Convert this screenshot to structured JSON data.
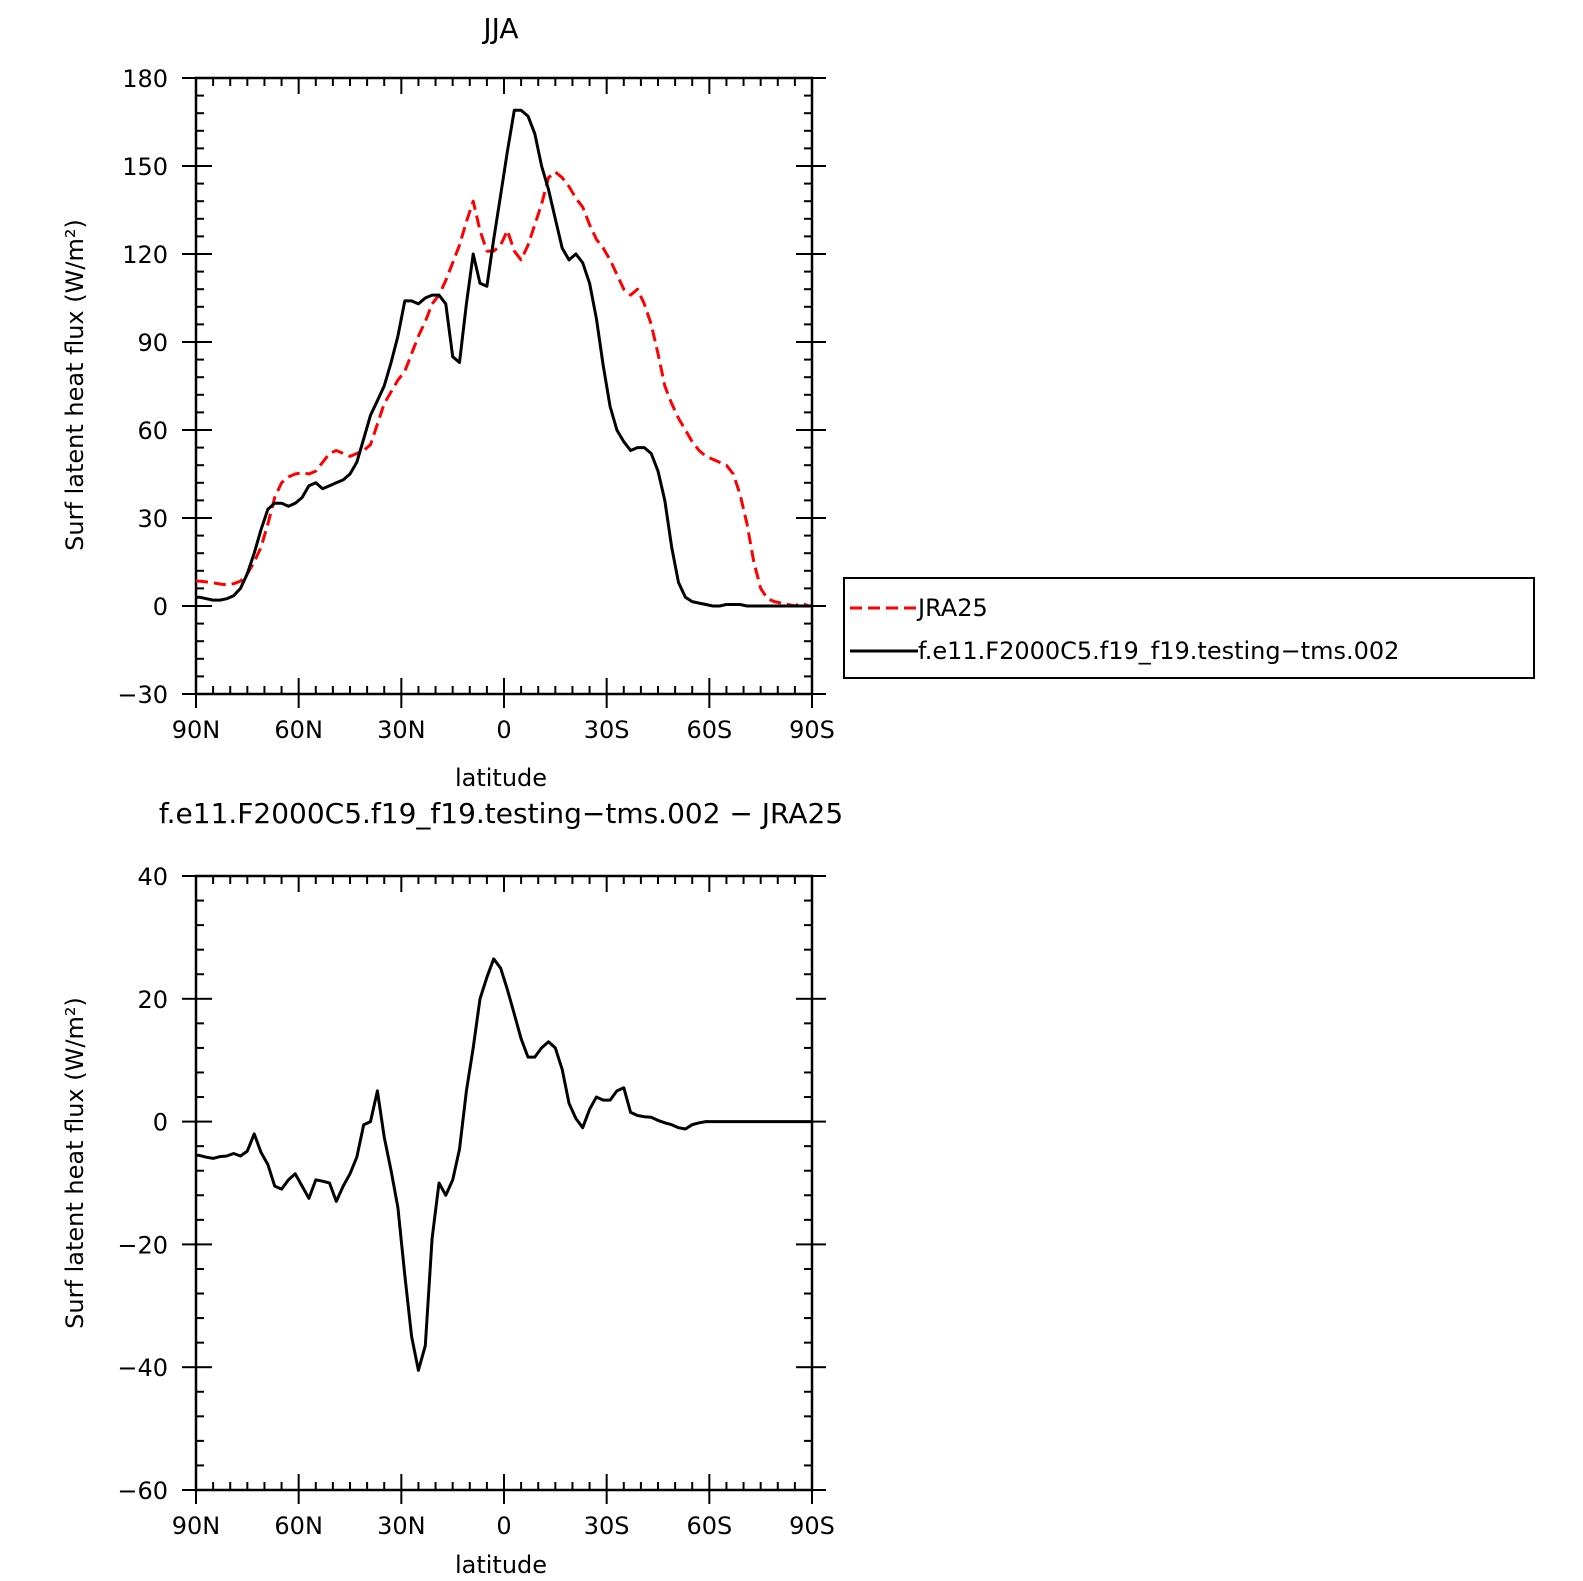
{
  "chart_data": [
    {
      "type": "line",
      "title": "JJA",
      "xlabel": "latitude",
      "ylabel": "Surf latent heat flux (W/m²)",
      "xlim": [
        90,
        -90
      ],
      "ylim": [
        -30,
        180
      ],
      "xticks": [
        90,
        60,
        30,
        0,
        -30,
        -60,
        -90
      ],
      "xtick_labels": [
        "90N",
        "60N",
        "30N",
        "0",
        "30S",
        "60S",
        "90S"
      ],
      "yticks": [
        -30,
        0,
        30,
        60,
        90,
        120,
        150,
        180
      ],
      "ytick_labels": [
        "−30",
        "0",
        "30",
        "60",
        "90",
        "120",
        "150",
        "180"
      ],
      "legend_position": "right",
      "series": [
        {
          "name": "JRA25",
          "color": "#ff0000",
          "style": "dashed",
          "x": [
            89,
            87,
            85,
            83,
            81,
            79,
            77,
            75,
            73,
            71,
            69,
            67,
            65,
            63,
            61,
            59,
            57,
            55,
            53,
            51,
            49,
            47,
            45,
            43,
            41,
            39,
            37,
            35,
            33,
            31,
            29,
            27,
            25,
            23,
            21,
            19,
            17,
            15,
            13,
            11,
            9,
            7,
            5,
            3,
            1,
            -1,
            -3,
            -5,
            -7,
            -9,
            -11,
            -13,
            -15,
            -17,
            -19,
            -21,
            -23,
            -25,
            -27,
            -29,
            -31,
            -33,
            -35,
            -37,
            -39,
            -41,
            -43,
            -45,
            -47,
            -49,
            -51,
            -53,
            -55,
            -57,
            -59,
            -61,
            -63,
            -65,
            -67,
            -69,
            -71,
            -73,
            -75,
            -77,
            -79,
            -81,
            -83,
            -85,
            -87,
            -89
          ],
          "values": [
            8.5,
            8.2,
            7.9,
            7.5,
            7.2,
            7.6,
            8.5,
            11,
            15,
            20,
            28,
            37,
            42,
            44,
            45,
            45.5,
            45,
            46,
            49,
            52,
            53,
            52,
            51,
            52,
            53,
            55,
            62,
            69,
            73,
            77,
            80,
            86,
            92,
            97,
            103,
            106,
            111,
            117,
            123,
            131,
            138,
            128,
            121,
            121,
            123,
            128,
            121,
            118,
            123,
            130,
            137,
            146,
            148,
            146,
            143,
            139,
            136,
            130,
            125,
            122,
            118,
            113,
            108,
            106,
            108,
            103,
            96,
            86,
            75,
            69,
            64,
            60,
            56,
            53,
            51,
            50,
            49,
            48,
            45,
            38,
            28,
            15,
            6,
            2.5,
            1.5,
            1,
            0.5,
            0,
            1,
            0
          ]
        },
        {
          "name": "f.e11.F2000C5.f19_f19.testing−tms.002",
          "color": "#000000",
          "style": "solid",
          "x": [
            89,
            87,
            85,
            83,
            81,
            79,
            77,
            75,
            73,
            71,
            69,
            67,
            65,
            63,
            61,
            59,
            57,
            55,
            53,
            51,
            49,
            47,
            45,
            43,
            41,
            39,
            37,
            35,
            33,
            31,
            29,
            27,
            25,
            23,
            21,
            19,
            17,
            15,
            13,
            11,
            9,
            7,
            5,
            3,
            1,
            -1,
            -3,
            -5,
            -7,
            -9,
            -11,
            -13,
            -15,
            -17,
            -19,
            -21,
            -23,
            -25,
            -27,
            -29,
            -31,
            -33,
            -35,
            -37,
            -39,
            -41,
            -43,
            -45,
            -47,
            -49,
            -51,
            -53,
            -55,
            -57,
            -59,
            -61,
            -63,
            -65,
            -67,
            -69,
            -71,
            -73,
            -75,
            -77,
            -79,
            -81,
            -83,
            -85,
            -87,
            -89
          ],
          "values": [
            3,
            2.5,
            2,
            2,
            2.5,
            3.5,
            6,
            11,
            18,
            26,
            33,
            35,
            35,
            34,
            35,
            37,
            41,
            42,
            40,
            41,
            42,
            43,
            45,
            49,
            57,
            65,
            70,
            75,
            83,
            92,
            104,
            104,
            103,
            105,
            106,
            106,
            103,
            85,
            83,
            103,
            120,
            110,
            109,
            125,
            140,
            155,
            169,
            169,
            167,
            161,
            150,
            142,
            132,
            122,
            118,
            120,
            117,
            110,
            98,
            82,
            68,
            60,
            56,
            53,
            54,
            54,
            52,
            46,
            36,
            20,
            8,
            3,
            1.5,
            1,
            0.5,
            0,
            0,
            0.5,
            0.5,
            0.5,
            0,
            0,
            0,
            0,
            0,
            0,
            0,
            0,
            0,
            0
          ]
        }
      ]
    },
    {
      "type": "line",
      "title": "f.e11.F2000C5.f19_f19.testing−tms.002 − JRA25",
      "xlabel": "latitude",
      "ylabel": "Surf latent heat flux (W/m²)",
      "xlim": [
        90,
        -90
      ],
      "ylim": [
        -60,
        40
      ],
      "xticks": [
        90,
        60,
        30,
        0,
        -30,
        -60,
        -90
      ],
      "xtick_labels": [
        "90N",
        "60N",
        "30N",
        "0",
        "30S",
        "60S",
        "90S"
      ],
      "yticks": [
        -60,
        -40,
        -20,
        0,
        20,
        40
      ],
      "ytick_labels": [
        "−60",
        "−40",
        "−20",
        "0",
        "20",
        "40"
      ],
      "series": [
        {
          "color": "#000000",
          "style": "solid",
          "x": [
            89,
            87,
            85,
            83,
            81,
            79,
            77,
            75,
            73,
            71,
            69,
            67,
            65,
            63,
            61,
            59,
            57,
            55,
            53,
            51,
            49,
            47,
            45,
            43,
            41,
            39,
            37,
            35,
            33,
            31,
            29,
            27,
            25,
            23,
            21,
            19,
            17,
            15,
            13,
            11,
            9,
            7,
            5,
            3,
            1,
            -1,
            -3,
            -5,
            -7,
            -9,
            -11,
            -13,
            -15,
            -17,
            -19,
            -21,
            -23,
            -25,
            -27,
            -29,
            -31,
            -33,
            -35,
            -37,
            -39,
            -41,
            -43,
            -45,
            -47,
            -49,
            -51,
            -53,
            -55,
            -57,
            -59,
            -61,
            -63,
            -65,
            -67,
            -69,
            -71,
            -73,
            -75,
            -77,
            -79,
            -81,
            -83,
            -85,
            -87,
            -89
          ],
          "values": [
            -5.5,
            -5.8,
            -6,
            -5.7,
            -5.6,
            -5.2,
            -5.6,
            -4.8,
            -2,
            -5,
            -7,
            -10.5,
            -11,
            -9.5,
            -8.5,
            -10.5,
            -12.5,
            -9.5,
            -9.7,
            -10,
            -13,
            -10.5,
            -8.5,
            -5.8,
            -0.5,
            0,
            5,
            -2.5,
            -8,
            -14,
            -25,
            -35,
            -40.5,
            -36.5,
            -19,
            -10,
            -12,
            -9.5,
            -4.5,
            5,
            12,
            20,
            23.5,
            26.5,
            25,
            21.5,
            17.5,
            13.5,
            10.5,
            10.5,
            12,
            13,
            12,
            8.5,
            3,
            0.5,
            -1,
            2,
            4,
            3.5,
            3.5,
            5,
            5.5,
            1.5,
            1,
            0.8,
            0.7,
            0.2,
            -0.2,
            -0.5,
            -1,
            -1.2,
            -0.5,
            -0.2,
            0,
            0,
            0,
            0,
            0,
            0,
            0,
            0,
            0,
            0,
            0,
            0,
            0,
            0,
            0,
            0
          ]
        }
      ]
    }
  ]
}
